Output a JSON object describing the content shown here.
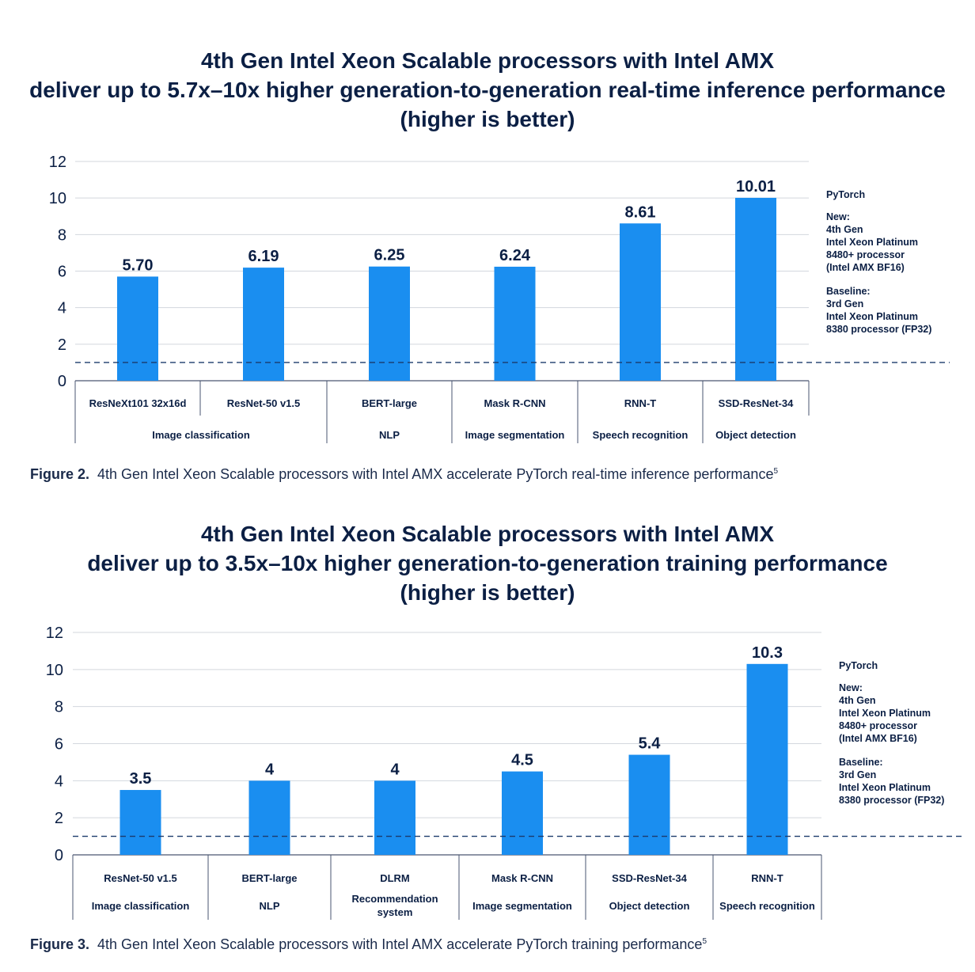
{
  "figures": [
    {
      "title_lines": [
        "4th Gen Intel Xeon Scalable processors with Intel AMX",
        "deliver up to 5.7x–10x higher generation-to-generation real-time inference performance",
        "(higher is better)"
      ],
      "caption_label": "Figure 2.",
      "caption_text": "4th Gen Intel Xeon Scalable processors with Intel AMX accelerate PyTorch real-time inference performance",
      "caption_sup": "5",
      "legend": {
        "framework": "PyTorch",
        "new_lines": [
          "New:",
          "4th Gen",
          "Intel Xeon Platinum",
          "8480+ processor",
          "(Intel AMX BF16)"
        ],
        "baseline_lines": [
          "Baseline:",
          "3rd Gen",
          "Intel Xeon Platinum",
          "8380 processor (FP32)"
        ]
      }
    },
    {
      "title_lines": [
        "4th Gen Intel Xeon Scalable processors with Intel AMX",
        "deliver up to 3.5x–10x higher generation-to-generation training performance",
        "(higher is better)"
      ],
      "caption_label": "Figure 3.",
      "caption_text": "4th Gen Intel Xeon Scalable processors with Intel AMX accelerate PyTorch training performance",
      "caption_sup": "5",
      "legend": {
        "framework": "PyTorch",
        "new_lines": [
          "New:",
          "4th Gen",
          "Intel Xeon Platinum",
          "8480+ processor",
          "(Intel AMX BF16)"
        ],
        "baseline_lines": [
          "Baseline:",
          "3rd Gen",
          "Intel Xeon Platinum",
          "8380 processor (FP32)"
        ]
      }
    }
  ],
  "colors": {
    "bar": "#1a8ef0",
    "text": "#0b1f44",
    "grid": "#d3d7de",
    "baseline": "#1b3a6b",
    "axis": "#4a5670"
  },
  "chart_data": [
    {
      "type": "bar",
      "title": "4th Gen Intel Xeon Scalable processors with Intel AMX deliver up to 5.7x–10x higher generation-to-generation real-time inference performance (higher is better)",
      "categories": [
        "ResNeXt101 32x16d",
        "ResNet-50 v1.5",
        "BERT-large",
        "Mask R-CNN",
        "RNN-T",
        "SSD-ResNet-34"
      ],
      "values": [
        5.7,
        6.19,
        6.25,
        6.24,
        8.61,
        10.01
      ],
      "value_labels": [
        "5.70",
        "6.19",
        "6.25",
        "6.24",
        "8.61",
        "10.01"
      ],
      "groups": [
        {
          "label": "Image classification",
          "count": 2
        },
        {
          "label": "NLP",
          "count": 1
        },
        {
          "label": "Image segmentation",
          "count": 1
        },
        {
          "label": "Speech recognition",
          "count": 1
        },
        {
          "label": "Object detection",
          "count": 1
        }
      ],
      "baseline_value": 1,
      "ylim": [
        0,
        12
      ],
      "yticks": [
        0,
        2,
        4,
        6,
        8,
        10,
        12
      ],
      "xlabel": "",
      "ylabel": ""
    },
    {
      "type": "bar",
      "title": "4th Gen Intel Xeon Scalable processors with Intel AMX deliver up to 3.5x–10x higher generation-to-generation training performance (higher is better)",
      "categories": [
        "ResNet-50 v1.5",
        "BERT-large",
        "DLRM",
        "Mask R-CNN",
        "SSD-ResNet-34",
        "RNN-T"
      ],
      "values": [
        3.5,
        4,
        4,
        4.5,
        5.4,
        10.3
      ],
      "value_labels": [
        "3.5",
        "4",
        "4",
        "4.5",
        "5.4",
        "10.3"
      ],
      "groups": [
        {
          "label": "Image classification",
          "count": 1
        },
        {
          "label": "NLP",
          "count": 1
        },
        {
          "label": "Recommendation system",
          "count": 1
        },
        {
          "label": "Image segmentation",
          "count": 1
        },
        {
          "label": "Object detection",
          "count": 1
        },
        {
          "label": "Speech recognition",
          "count": 1
        }
      ],
      "baseline_value": 1,
      "ylim": [
        0,
        12
      ],
      "yticks": [
        0,
        2,
        4,
        6,
        8,
        10,
        12
      ],
      "xlabel": "",
      "ylabel": ""
    }
  ]
}
